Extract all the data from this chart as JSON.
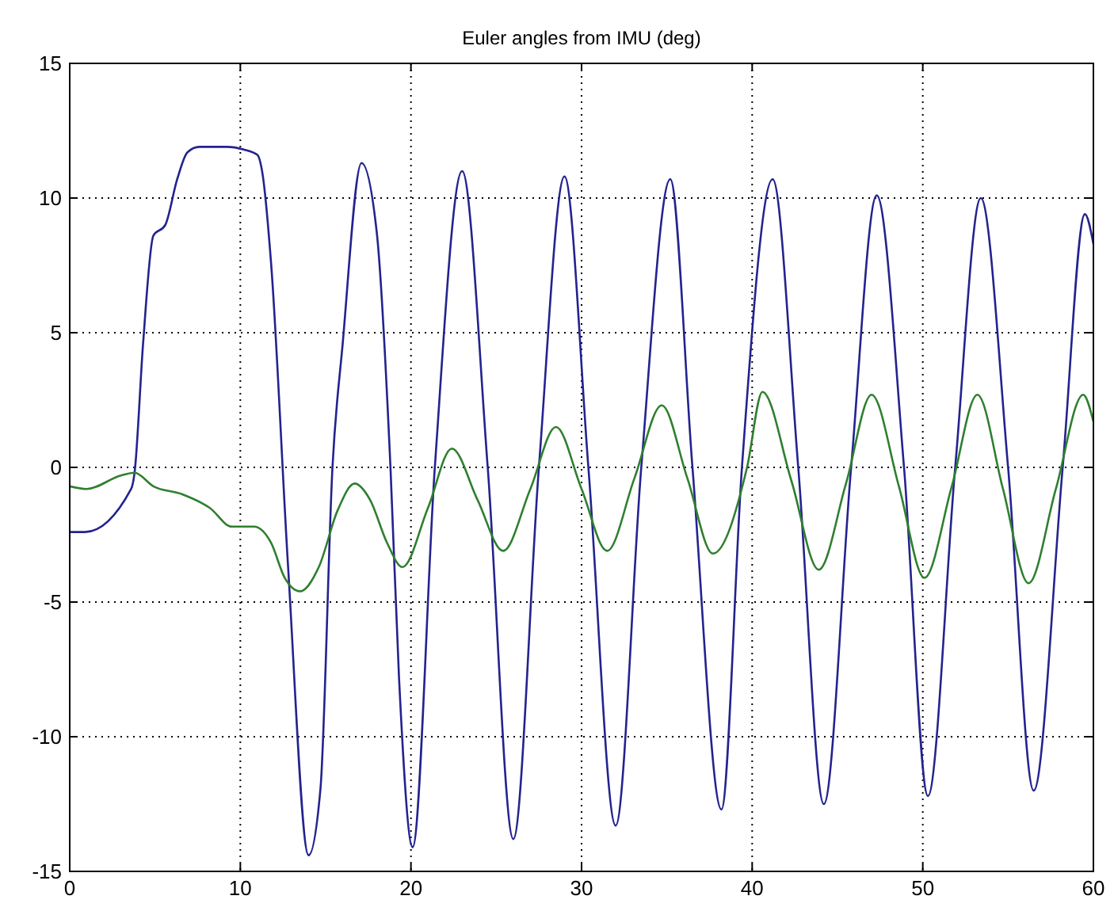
{
  "chart_data": {
    "type": "line",
    "title": "Euler angles from IMU (deg)",
    "xlim": [
      0,
      60
    ],
    "ylim": [
      -15,
      15
    ],
    "xticks": [
      0,
      10,
      20,
      30,
      40,
      50,
      60
    ],
    "yticks": [
      -15,
      -10,
      -5,
      0,
      5,
      10,
      15
    ],
    "grid": true,
    "series": [
      {
        "color": "#23238f",
        "x": [
          0,
          0.9,
          3.6,
          3.8,
          4.3,
          4.9,
          5.6,
          6.3,
          6.9,
          7.6,
          9.2,
          10.2,
          11.0,
          11.3,
          11.8,
          12.8,
          14.0,
          14.7,
          15.4,
          16.0,
          17.1,
          18.0,
          18.8,
          19.3,
          20.1,
          21.4,
          23.0,
          24.5,
          26.0,
          27.5,
          29.0,
          30.4,
          32.0,
          33.5,
          35.2,
          36.5,
          38.2,
          39.4,
          41.2,
          42.7,
          44.2,
          45.8,
          47.3,
          48.9,
          50.3,
          51.9,
          53.4,
          55.0,
          56.5,
          58.2,
          59.5,
          60
        ],
        "values": [
          -2.4,
          -2.4,
          -0.8,
          -0.2,
          4.6,
          8.6,
          9.0,
          10.7,
          11.7,
          11.9,
          11.9,
          11.8,
          11.6,
          10.9,
          7.6,
          -3.7,
          -14.4,
          -11.9,
          0,
          4.6,
          11.3,
          8.7,
          0,
          -7.8,
          -14.1,
          0,
          11.0,
          0,
          -13.8,
          0,
          10.8,
          0,
          -13.3,
          0,
          10.7,
          0,
          -12.7,
          0,
          10.7,
          0,
          -12.5,
          0,
          10.1,
          0,
          -12.2,
          0,
          10.0,
          0,
          -12.0,
          0,
          9.4,
          8.3
        ]
      },
      {
        "color": "#2f7f2f",
        "x": [
          0,
          1.0,
          3.0,
          3.8,
          4.9,
          6.6,
          8.2,
          9.5,
          10.8,
          11.8,
          12.6,
          13.5,
          14.6,
          15.7,
          16.7,
          17.6,
          18.6,
          19.5,
          21.0,
          22.4,
          23.9,
          25.4,
          27.0,
          28.5,
          30.0,
          31.5,
          33.1,
          34.7,
          36.2,
          37.7,
          39.7,
          40.6,
          42.3,
          43.9,
          45.5,
          47.0,
          48.6,
          50.1,
          51.7,
          53.2,
          54.7,
          56.2,
          57.8,
          59.4,
          60
        ],
        "values": [
          -0.7,
          -0.8,
          -0.3,
          -0.2,
          -0.7,
          -1.0,
          -1.5,
          -2.2,
          -2.2,
          -2.8,
          -4.1,
          -4.6,
          -3.7,
          -1.6,
          -0.6,
          -1.2,
          -2.8,
          -3.7,
          -1.5,
          0.7,
          -1.2,
          -3.1,
          -0.8,
          1.5,
          -0.8,
          -3.1,
          -0.4,
          2.3,
          -0.4,
          -3.2,
          0.0,
          2.8,
          -0.5,
          -3.8,
          -0.6,
          2.7,
          -0.7,
          -4.1,
          -0.7,
          2.7,
          -0.8,
          -4.3,
          -0.8,
          2.7,
          1.7
        ]
      }
    ]
  }
}
